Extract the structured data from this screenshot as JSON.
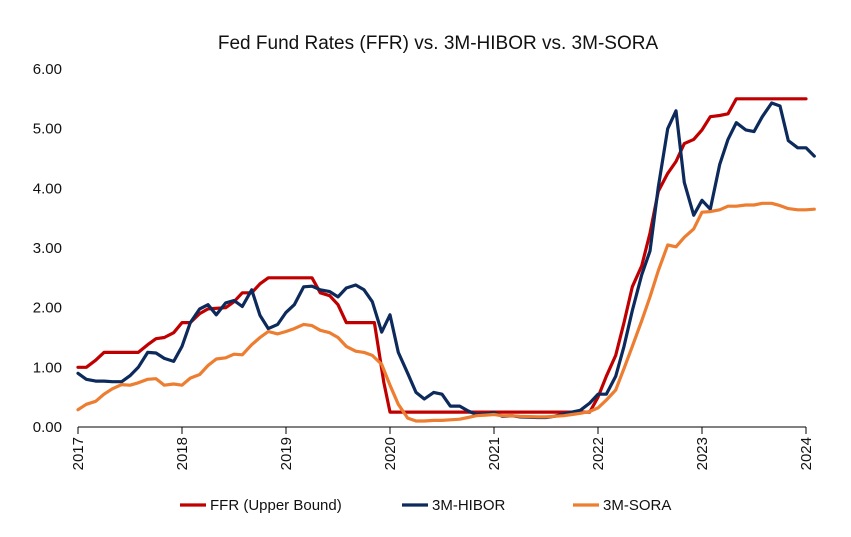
{
  "chart_data": {
    "type": "line",
    "title": "Fed Fund Rates (FFR) vs. 3M-HIBOR vs. 3M-SORA",
    "xlabel": "",
    "ylabel": "",
    "xlim": [
      2017,
      2024
    ],
    "ylim": [
      0,
      6
    ],
    "x_ticks": [
      "2017",
      "2018",
      "2019",
      "2020",
      "2021",
      "2022",
      "2023",
      "2024"
    ],
    "y_ticks": [
      "0.00",
      "1.00",
      "2.00",
      "3.00",
      "4.00",
      "5.00",
      "6.00"
    ],
    "grid": false,
    "legend_position": "bottom",
    "series": [
      {
        "name": "FFR (Upper Bound)",
        "color": "#c00000",
        "points": [
          [
            2017.0,
            1.0
          ],
          [
            2017.08,
            1.0
          ],
          [
            2017.17,
            1.12
          ],
          [
            2017.25,
            1.25
          ],
          [
            2017.42,
            1.25
          ],
          [
            2017.58,
            1.25
          ],
          [
            2017.67,
            1.38
          ],
          [
            2017.75,
            1.48
          ],
          [
            2017.83,
            1.5
          ],
          [
            2017.92,
            1.58
          ],
          [
            2018.0,
            1.75
          ],
          [
            2018.08,
            1.75
          ],
          [
            2018.17,
            1.9
          ],
          [
            2018.25,
            1.98
          ],
          [
            2018.42,
            2.0
          ],
          [
            2018.5,
            2.1
          ],
          [
            2018.58,
            2.25
          ],
          [
            2018.67,
            2.25
          ],
          [
            2018.75,
            2.4
          ],
          [
            2018.83,
            2.5
          ],
          [
            2018.92,
            2.5
          ],
          [
            2019.0,
            2.5
          ],
          [
            2019.17,
            2.5
          ],
          [
            2019.25,
            2.5
          ],
          [
            2019.33,
            2.25
          ],
          [
            2019.42,
            2.2
          ],
          [
            2019.5,
            2.05
          ],
          [
            2019.58,
            1.75
          ],
          [
            2019.67,
            1.75
          ],
          [
            2019.75,
            1.75
          ],
          [
            2019.85,
            1.75
          ],
          [
            2019.94,
            0.75
          ],
          [
            2020.0,
            0.25
          ],
          [
            2020.17,
            0.25
          ],
          [
            2020.5,
            0.25
          ],
          [
            2020.75,
            0.25
          ],
          [
            2021.0,
            0.25
          ],
          [
            2021.25,
            0.25
          ],
          [
            2021.5,
            0.25
          ],
          [
            2021.75,
            0.25
          ],
          [
            2021.92,
            0.25
          ],
          [
            2022.0,
            0.5
          ],
          [
            2022.08,
            0.85
          ],
          [
            2022.17,
            1.2
          ],
          [
            2022.25,
            1.75
          ],
          [
            2022.33,
            2.35
          ],
          [
            2022.42,
            2.7
          ],
          [
            2022.5,
            3.25
          ],
          [
            2022.58,
            3.95
          ],
          [
            2022.67,
            4.25
          ],
          [
            2022.75,
            4.45
          ],
          [
            2022.83,
            4.75
          ],
          [
            2022.92,
            4.82
          ],
          [
            2023.0,
            4.98
          ],
          [
            2023.08,
            5.2
          ],
          [
            2023.17,
            5.22
          ],
          [
            2023.25,
            5.25
          ],
          [
            2023.33,
            5.5
          ],
          [
            2023.5,
            5.5
          ],
          [
            2023.75,
            5.5
          ],
          [
            2024.0,
            5.5
          ]
        ]
      },
      {
        "name": "3M-HIBOR",
        "color": "#0c2a5b",
        "points": [
          [
            2017.0,
            0.9
          ],
          [
            2017.08,
            0.8
          ],
          [
            2017.17,
            0.77
          ],
          [
            2017.25,
            0.77
          ],
          [
            2017.33,
            0.76
          ],
          [
            2017.42,
            0.76
          ],
          [
            2017.5,
            0.86
          ],
          [
            2017.58,
            1.0
          ],
          [
            2017.67,
            1.25
          ],
          [
            2017.75,
            1.24
          ],
          [
            2017.83,
            1.15
          ],
          [
            2017.92,
            1.1
          ],
          [
            2018.0,
            1.35
          ],
          [
            2018.08,
            1.75
          ],
          [
            2018.17,
            1.98
          ],
          [
            2018.25,
            2.05
          ],
          [
            2018.33,
            1.88
          ],
          [
            2018.42,
            2.08
          ],
          [
            2018.5,
            2.12
          ],
          [
            2018.58,
            2.02
          ],
          [
            2018.67,
            2.3
          ],
          [
            2018.75,
            1.87
          ],
          [
            2018.83,
            1.65
          ],
          [
            2018.92,
            1.72
          ],
          [
            2019.0,
            1.92
          ],
          [
            2019.08,
            2.05
          ],
          [
            2019.17,
            2.35
          ],
          [
            2019.25,
            2.36
          ],
          [
            2019.33,
            2.3
          ],
          [
            2019.42,
            2.27
          ],
          [
            2019.5,
            2.18
          ],
          [
            2019.58,
            2.33
          ],
          [
            2019.67,
            2.38
          ],
          [
            2019.75,
            2.3
          ],
          [
            2019.83,
            2.1
          ],
          [
            2019.92,
            1.59
          ],
          [
            2020.0,
            1.88
          ],
          [
            2020.08,
            1.25
          ],
          [
            2020.17,
            0.9
          ],
          [
            2020.25,
            0.58
          ],
          [
            2020.33,
            0.47
          ],
          [
            2020.42,
            0.58
          ],
          [
            2020.5,
            0.55
          ],
          [
            2020.58,
            0.35
          ],
          [
            2020.67,
            0.35
          ],
          [
            2020.75,
            0.27
          ],
          [
            2020.83,
            0.21
          ],
          [
            2020.92,
            0.22
          ],
          [
            2021.0,
            0.24
          ],
          [
            2021.08,
            0.18
          ],
          [
            2021.17,
            0.19
          ],
          [
            2021.25,
            0.17
          ],
          [
            2021.42,
            0.16
          ],
          [
            2021.5,
            0.16
          ],
          [
            2021.58,
            0.18
          ],
          [
            2021.67,
            0.22
          ],
          [
            2021.75,
            0.25
          ],
          [
            2021.83,
            0.28
          ],
          [
            2021.92,
            0.4
          ],
          [
            2022.0,
            0.55
          ],
          [
            2022.08,
            0.55
          ],
          [
            2022.17,
            0.85
          ],
          [
            2022.25,
            1.35
          ],
          [
            2022.33,
            1.95
          ],
          [
            2022.42,
            2.55
          ],
          [
            2022.5,
            2.95
          ],
          [
            2022.58,
            4.02
          ],
          [
            2022.67,
            5.0
          ],
          [
            2022.75,
            5.3
          ],
          [
            2022.83,
            4.1
          ],
          [
            2022.92,
            3.55
          ],
          [
            2023.0,
            3.8
          ],
          [
            2023.08,
            3.65
          ],
          [
            2023.17,
            4.4
          ],
          [
            2023.25,
            4.82
          ],
          [
            2023.33,
            5.1
          ],
          [
            2023.42,
            4.98
          ],
          [
            2023.5,
            4.95
          ],
          [
            2023.58,
            5.2
          ],
          [
            2023.67,
            5.43
          ],
          [
            2023.75,
            5.38
          ],
          [
            2023.83,
            4.8
          ],
          [
            2023.92,
            4.68
          ],
          [
            2024.0,
            4.68
          ],
          [
            2024.08,
            4.54
          ]
        ]
      },
      {
        "name": "3M-SORA",
        "color": "#ed7d31",
        "points": [
          [
            2017.0,
            0.29
          ],
          [
            2017.08,
            0.38
          ],
          [
            2017.17,
            0.43
          ],
          [
            2017.25,
            0.55
          ],
          [
            2017.33,
            0.64
          ],
          [
            2017.42,
            0.71
          ],
          [
            2017.5,
            0.7
          ],
          [
            2017.58,
            0.74
          ],
          [
            2017.67,
            0.8
          ],
          [
            2017.75,
            0.81
          ],
          [
            2017.83,
            0.7
          ],
          [
            2017.92,
            0.72
          ],
          [
            2018.0,
            0.7
          ],
          [
            2018.08,
            0.82
          ],
          [
            2018.17,
            0.88
          ],
          [
            2018.25,
            1.03
          ],
          [
            2018.33,
            1.14
          ],
          [
            2018.42,
            1.16
          ],
          [
            2018.5,
            1.22
          ],
          [
            2018.58,
            1.21
          ],
          [
            2018.67,
            1.38
          ],
          [
            2018.75,
            1.5
          ],
          [
            2018.83,
            1.6
          ],
          [
            2018.92,
            1.56
          ],
          [
            2019.0,
            1.6
          ],
          [
            2019.08,
            1.65
          ],
          [
            2019.17,
            1.72
          ],
          [
            2019.25,
            1.7
          ],
          [
            2019.33,
            1.62
          ],
          [
            2019.42,
            1.58
          ],
          [
            2019.5,
            1.5
          ],
          [
            2019.58,
            1.35
          ],
          [
            2019.67,
            1.27
          ],
          [
            2019.75,
            1.25
          ],
          [
            2019.83,
            1.2
          ],
          [
            2019.92,
            1.05
          ],
          [
            2020.0,
            0.7
          ],
          [
            2020.08,
            0.38
          ],
          [
            2020.17,
            0.15
          ],
          [
            2020.25,
            0.1
          ],
          [
            2020.33,
            0.1
          ],
          [
            2020.42,
            0.11
          ],
          [
            2020.5,
            0.11
          ],
          [
            2020.58,
            0.12
          ],
          [
            2020.67,
            0.13
          ],
          [
            2020.75,
            0.16
          ],
          [
            2020.83,
            0.19
          ],
          [
            2020.92,
            0.2
          ],
          [
            2021.0,
            0.21
          ],
          [
            2021.08,
            0.19
          ],
          [
            2021.17,
            0.19
          ],
          [
            2021.25,
            0.18
          ],
          [
            2021.42,
            0.17
          ],
          [
            2021.5,
            0.17
          ],
          [
            2021.58,
            0.18
          ],
          [
            2021.67,
            0.19
          ],
          [
            2021.75,
            0.21
          ],
          [
            2021.83,
            0.23
          ],
          [
            2021.92,
            0.26
          ],
          [
            2022.0,
            0.32
          ],
          [
            2022.08,
            0.45
          ],
          [
            2022.17,
            0.62
          ],
          [
            2022.25,
            0.98
          ],
          [
            2022.33,
            1.35
          ],
          [
            2022.42,
            1.78
          ],
          [
            2022.5,
            2.18
          ],
          [
            2022.58,
            2.62
          ],
          [
            2022.67,
            3.05
          ],
          [
            2022.75,
            3.02
          ],
          [
            2022.83,
            3.18
          ],
          [
            2022.92,
            3.32
          ],
          [
            2023.0,
            3.6
          ],
          [
            2023.08,
            3.61
          ],
          [
            2023.17,
            3.64
          ],
          [
            2023.25,
            3.7
          ],
          [
            2023.33,
            3.7
          ],
          [
            2023.42,
            3.72
          ],
          [
            2023.5,
            3.72
          ],
          [
            2023.58,
            3.75
          ],
          [
            2023.67,
            3.75
          ],
          [
            2023.75,
            3.71
          ],
          [
            2023.83,
            3.66
          ],
          [
            2023.92,
            3.64
          ],
          [
            2024.0,
            3.64
          ],
          [
            2024.08,
            3.65
          ]
        ]
      }
    ]
  }
}
